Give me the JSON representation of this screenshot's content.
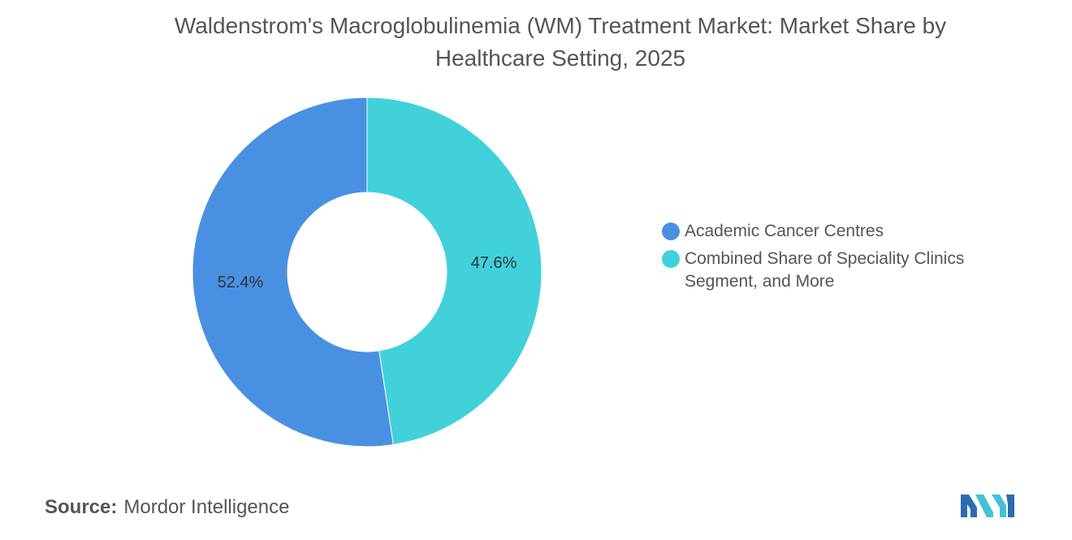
{
  "title_lines": [
    "Waldenstrom's Macroglobulinemia (WM) Treatment Market: Market Share by",
    "Healthcare Setting, 2025"
  ],
  "source": {
    "label": "Source:",
    "value": "Mordor Intelligence"
  },
  "chart_data": {
    "type": "pie",
    "style": "donut",
    "title": "Waldenstrom's Macroglobulinemia (WM) Treatment Market: Market Share by Healthcare Setting, 2025",
    "slices": [
      {
        "name": "Academic Cancer Centres",
        "value": 52.4,
        "label": "52.4%",
        "color": "#4A90E2"
      },
      {
        "name": "Combined Share of Speciality Clinics Segment, and More",
        "value": 47.6,
        "label": "47.6%",
        "color": "#41D1DB"
      }
    ],
    "legend": {
      "position": "right",
      "items": [
        {
          "lines": [
            "Academic Cancer Centres"
          ],
          "color": "#4A90E2"
        },
        {
          "lines": [
            "Combined Share of Speciality Clinics",
            "Segment, and More"
          ],
          "color": "#41D1DB"
        }
      ]
    }
  },
  "logo": {
    "icon": "mordor-intelligence-logo-icon",
    "colors": [
      "#2B6CB0",
      "#41C1D6"
    ]
  }
}
